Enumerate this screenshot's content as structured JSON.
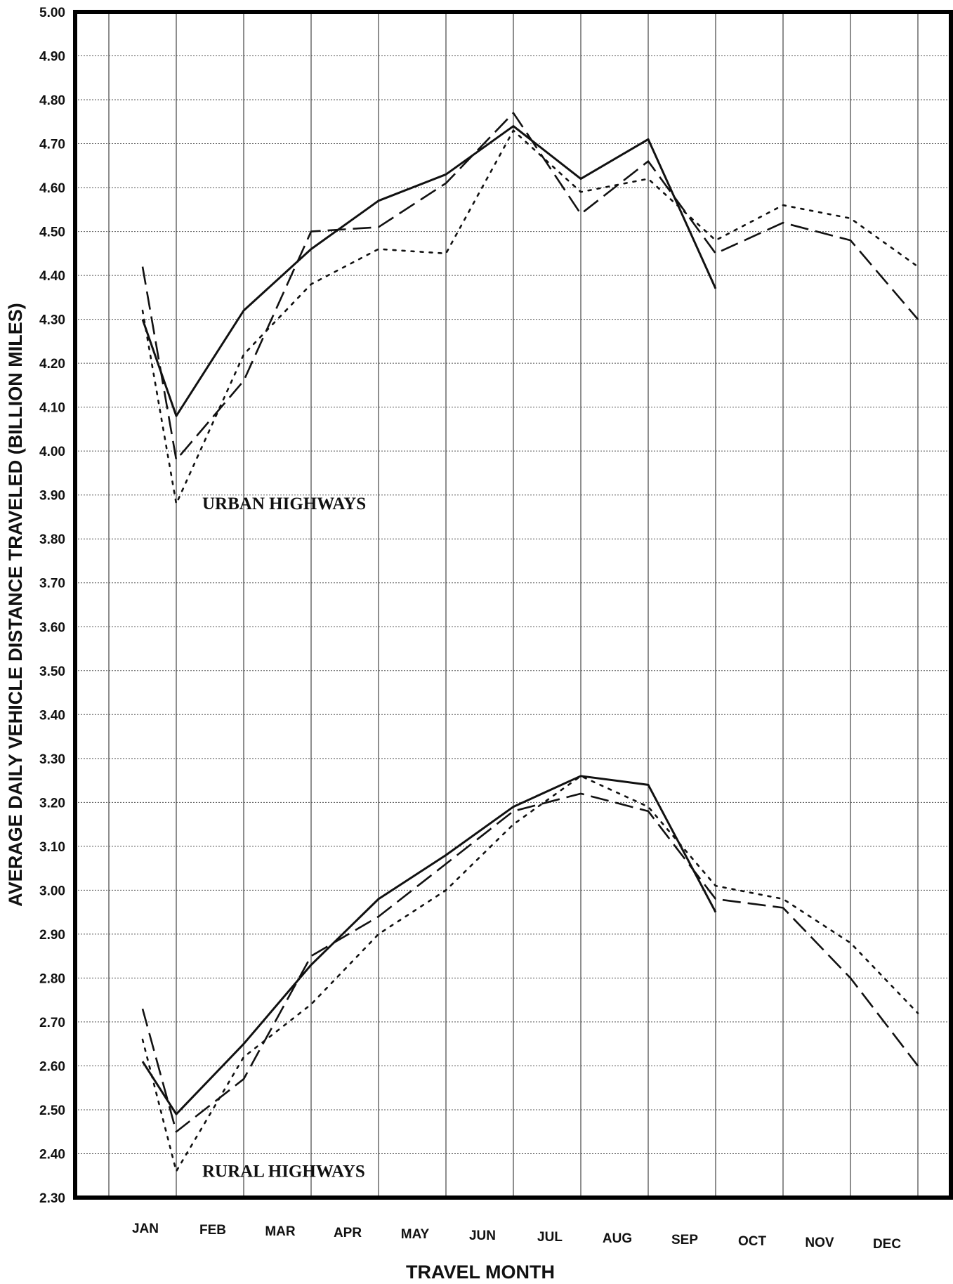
{
  "chart_data": {
    "type": "line",
    "title": "",
    "xlabel": "TRAVEL MONTH",
    "ylabel": "AVERAGE DAILY VEHICLE DISTANCE TRAVELED (BILLION MILES)",
    "ylim": [
      2.3,
      5.0
    ],
    "y_ticks": [
      "2.30",
      "2.40",
      "2.50",
      "2.60",
      "2.70",
      "2.80",
      "2.90",
      "3.00",
      "3.10",
      "3.20",
      "3.30",
      "3.40",
      "3.50",
      "3.60",
      "3.70",
      "3.80",
      "3.90",
      "4.00",
      "4.10",
      "4.20",
      "4.30",
      "4.40",
      "4.50",
      "4.60",
      "4.70",
      "4.80",
      "4.90",
      "5.00"
    ],
    "categories": [
      "JAN",
      "FEB",
      "MAR",
      "APR",
      "MAY",
      "JUN",
      "JUL",
      "AUG",
      "SEP",
      "OCT",
      "NOV",
      "DEC"
    ],
    "grid": true,
    "annotations": [
      {
        "text": "URBAN HIGHWAYS"
      },
      {
        "text": "RURAL HIGHWAYS"
      }
    ],
    "series": [
      {
        "group": "urban",
        "style": "solid",
        "points": [
          [
            -0.5,
            4.3
          ],
          [
            0,
            4.08
          ],
          [
            1,
            4.32
          ],
          [
            2,
            4.46
          ],
          [
            3,
            4.57
          ],
          [
            4,
            4.63
          ],
          [
            5,
            4.74
          ],
          [
            6,
            4.62
          ],
          [
            7,
            4.71
          ],
          [
            8,
            4.37
          ]
        ]
      },
      {
        "group": "urban",
        "style": "dashed",
        "points": [
          [
            -0.5,
            4.42
          ],
          [
            0,
            3.98
          ],
          [
            1,
            4.16
          ],
          [
            2,
            4.5
          ],
          [
            3,
            4.51
          ],
          [
            4,
            4.61
          ],
          [
            5,
            4.77
          ],
          [
            6,
            4.54
          ],
          [
            7,
            4.66
          ],
          [
            8,
            4.45
          ],
          [
            9,
            4.52
          ],
          [
            10,
            4.48
          ],
          [
            11,
            4.3
          ]
        ]
      },
      {
        "group": "urban",
        "style": "dotted",
        "points": [
          [
            -0.5,
            4.32
          ],
          [
            0,
            3.88
          ],
          [
            1,
            4.22
          ],
          [
            2,
            4.38
          ],
          [
            3,
            4.46
          ],
          [
            4,
            4.45
          ],
          [
            5,
            4.73
          ],
          [
            6,
            4.59
          ],
          [
            7,
            4.62
          ],
          [
            8,
            4.48
          ],
          [
            9,
            4.56
          ],
          [
            10,
            4.53
          ],
          [
            11,
            4.42
          ]
        ]
      },
      {
        "group": "rural",
        "style": "solid",
        "points": [
          [
            -0.5,
            2.61
          ],
          [
            0,
            2.49
          ],
          [
            1,
            2.65
          ],
          [
            2,
            2.83
          ],
          [
            3,
            2.98
          ],
          [
            4,
            3.08
          ],
          [
            5,
            3.19
          ],
          [
            6,
            3.26
          ],
          [
            7,
            3.24
          ],
          [
            8,
            2.95
          ]
        ]
      },
      {
        "group": "rural",
        "style": "dashed",
        "points": [
          [
            -0.5,
            2.73
          ],
          [
            0,
            2.45
          ],
          [
            1,
            2.57
          ],
          [
            2,
            2.85
          ],
          [
            3,
            2.94
          ],
          [
            4,
            3.06
          ],
          [
            5,
            3.18
          ],
          [
            6,
            3.22
          ],
          [
            7,
            3.18
          ],
          [
            8,
            2.98
          ],
          [
            9,
            2.96
          ],
          [
            10,
            2.8
          ],
          [
            11,
            2.6
          ]
        ]
      },
      {
        "group": "rural",
        "style": "dotted",
        "points": [
          [
            -0.5,
            2.66
          ],
          [
            0,
            2.36
          ],
          [
            1,
            2.62
          ],
          [
            2,
            2.74
          ],
          [
            3,
            2.9
          ],
          [
            4,
            3.0
          ],
          [
            5,
            3.15
          ],
          [
            6,
            3.26
          ],
          [
            7,
            3.19
          ],
          [
            8,
            3.01
          ],
          [
            9,
            2.98
          ],
          [
            10,
            2.88
          ],
          [
            11,
            2.72
          ]
        ]
      }
    ]
  }
}
